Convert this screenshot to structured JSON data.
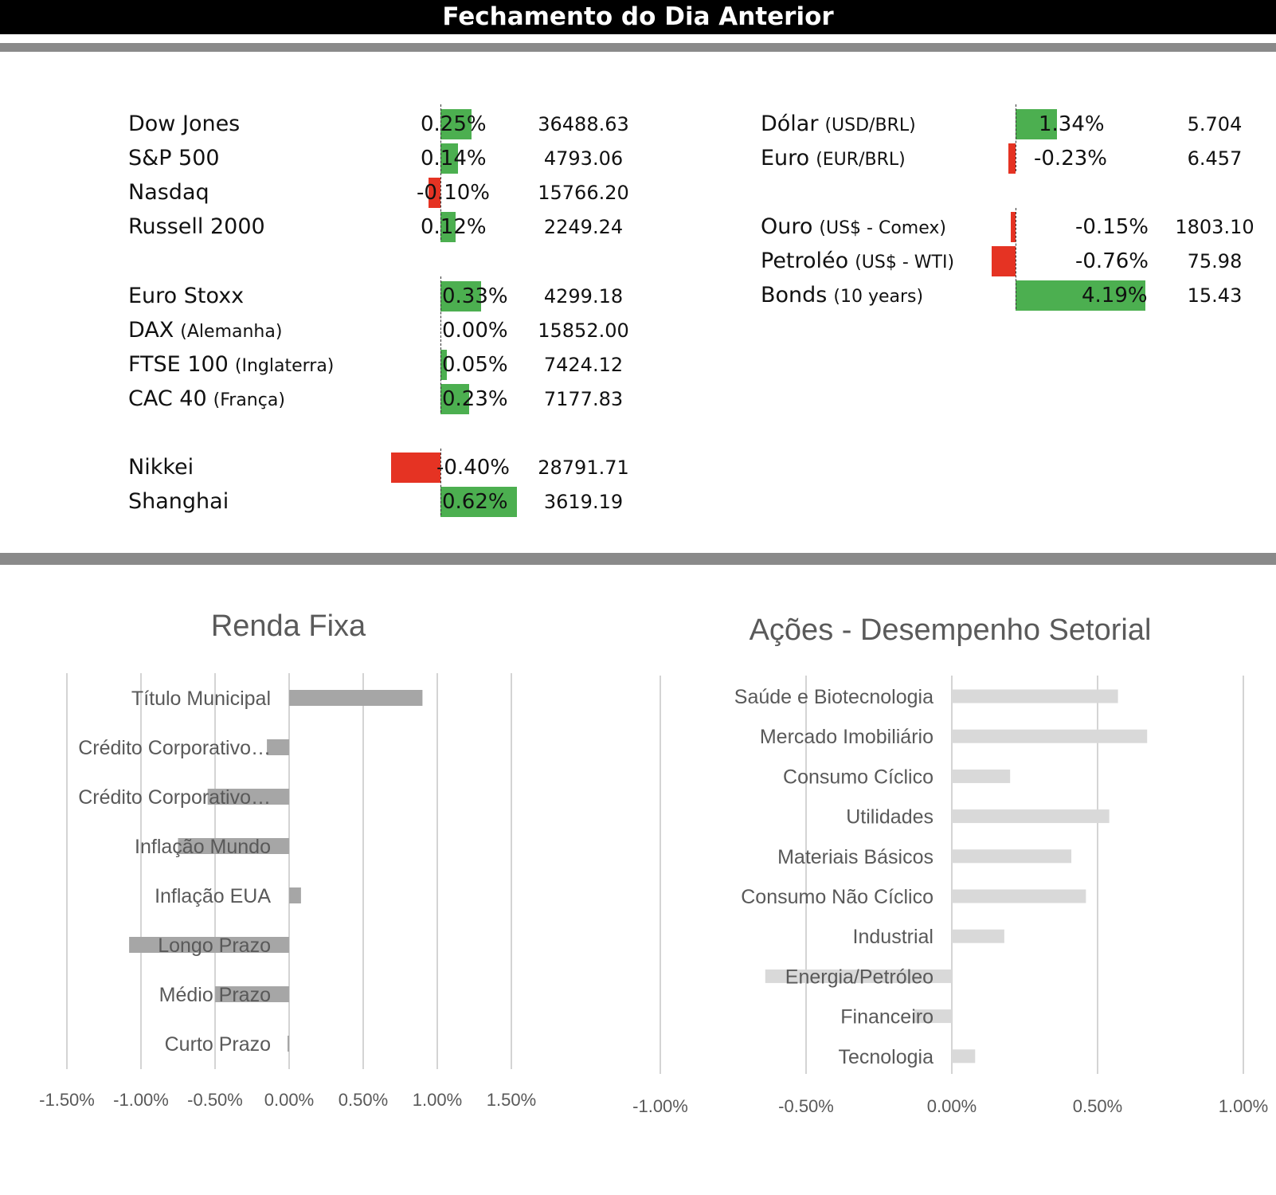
{
  "header": {
    "title": "Fechamento do Dia Anterior"
  },
  "colors": {
    "positive": "#4caf50",
    "negative": "#e53323",
    "renda_fixa_bar": "#a6a6a6",
    "setorial_bar": "#d9d9d9",
    "grid": "#d4d4d4"
  },
  "markets_left": [
    {
      "name": "Dow Jones",
      "sub": "",
      "change": 0.25,
      "change_label": "0.25%",
      "value": "36488.63"
    },
    {
      "name": "S&P 500",
      "sub": "",
      "change": 0.14,
      "change_label": "0.14%",
      "value": "4793.06"
    },
    {
      "name": "Nasdaq",
      "sub": "",
      "change": -0.1,
      "change_label": "-0.10%",
      "value": "15766.20"
    },
    {
      "name": "Russell 2000",
      "sub": "",
      "change": 0.12,
      "change_label": "0.12%",
      "value": "2249.24"
    },
    {
      "name": "Euro Stoxx",
      "sub": "",
      "change": 0.33,
      "change_label": "0.33%",
      "value": "4299.18"
    },
    {
      "name": "DAX",
      "sub": "(Alemanha)",
      "change": 0.0,
      "change_label": "0.00%",
      "value": "15852.00"
    },
    {
      "name": "FTSE 100",
      "sub": "(Inglaterra)",
      "change": 0.05,
      "change_label": "0.05%",
      "value": "7424.12"
    },
    {
      "name": "CAC 40",
      "sub": "(França)",
      "change": 0.23,
      "change_label": "0.23%",
      "value": "7177.83"
    },
    {
      "name": "Nikkei",
      "sub": "",
      "change": -0.4,
      "change_label": "-0.40%",
      "value": "28791.71"
    },
    {
      "name": "Shanghai",
      "sub": "",
      "change": 0.62,
      "change_label": "0.62%",
      "value": "3619.19"
    }
  ],
  "markets_right": [
    {
      "name": "Dólar",
      "sub": "(USD/BRL)",
      "change": 1.34,
      "change_label": "1.34%",
      "value": "5.704"
    },
    {
      "name": "Euro",
      "sub": "(EUR/BRL)",
      "change": -0.23,
      "change_label": "-0.23%",
      "value": "6.457"
    },
    {
      "name": "Ouro",
      "sub": "(US$ - Comex)",
      "change": -0.15,
      "change_label": "-0.15%",
      "value": "1803.10"
    },
    {
      "name": "Petroléo",
      "sub": "(US$ - WTI)",
      "change": -0.76,
      "change_label": "-0.76%",
      "value": "75.98"
    },
    {
      "name": "Bonds",
      "sub": "(10 years)",
      "change": 4.19,
      "change_label": "4.19%",
      "value": "15.43"
    }
  ],
  "chart_data": [
    {
      "type": "bar",
      "orientation": "horizontal",
      "title": "Renda Fixa",
      "categories": [
        "Título Municipal",
        "Crédito Corporativo…",
        "Crédito Corporativo…",
        "Inflação Mundo",
        "Inflação EUA",
        "Longo Prazo",
        "Médio Prazo",
        "Curto Prazo"
      ],
      "values": [
        0.9,
        -0.15,
        -0.55,
        -0.75,
        0.08,
        -1.08,
        -0.5,
        -0.01
      ],
      "xlim": [
        -1.5,
        1.5
      ],
      "ticks": [
        "-1.50%",
        "-1.00%",
        "-0.50%",
        "0.00%",
        "0.50%",
        "1.00%",
        "1.50%"
      ],
      "grid": true
    },
    {
      "type": "bar",
      "orientation": "horizontal",
      "title": "Ações - Desempenho Setorial",
      "categories": [
        "Saúde e Biotecnologia",
        "Mercado Imobiliário",
        "Consumo Cíclico",
        "Utilidades",
        "Materiais Básicos",
        "Consumo Não Cíclico",
        "Industrial",
        "Energia/Petróleo",
        "Financeiro",
        "Tecnologia"
      ],
      "values": [
        0.57,
        0.67,
        0.2,
        0.54,
        0.41,
        0.46,
        0.18,
        -0.64,
        -0.13,
        0.08
      ],
      "xlim": [
        -1.0,
        1.0
      ],
      "ticks": [
        "-1.00%",
        "-0.50%",
        "0.00%",
        "0.50%",
        "1.00%"
      ],
      "grid": true
    }
  ]
}
